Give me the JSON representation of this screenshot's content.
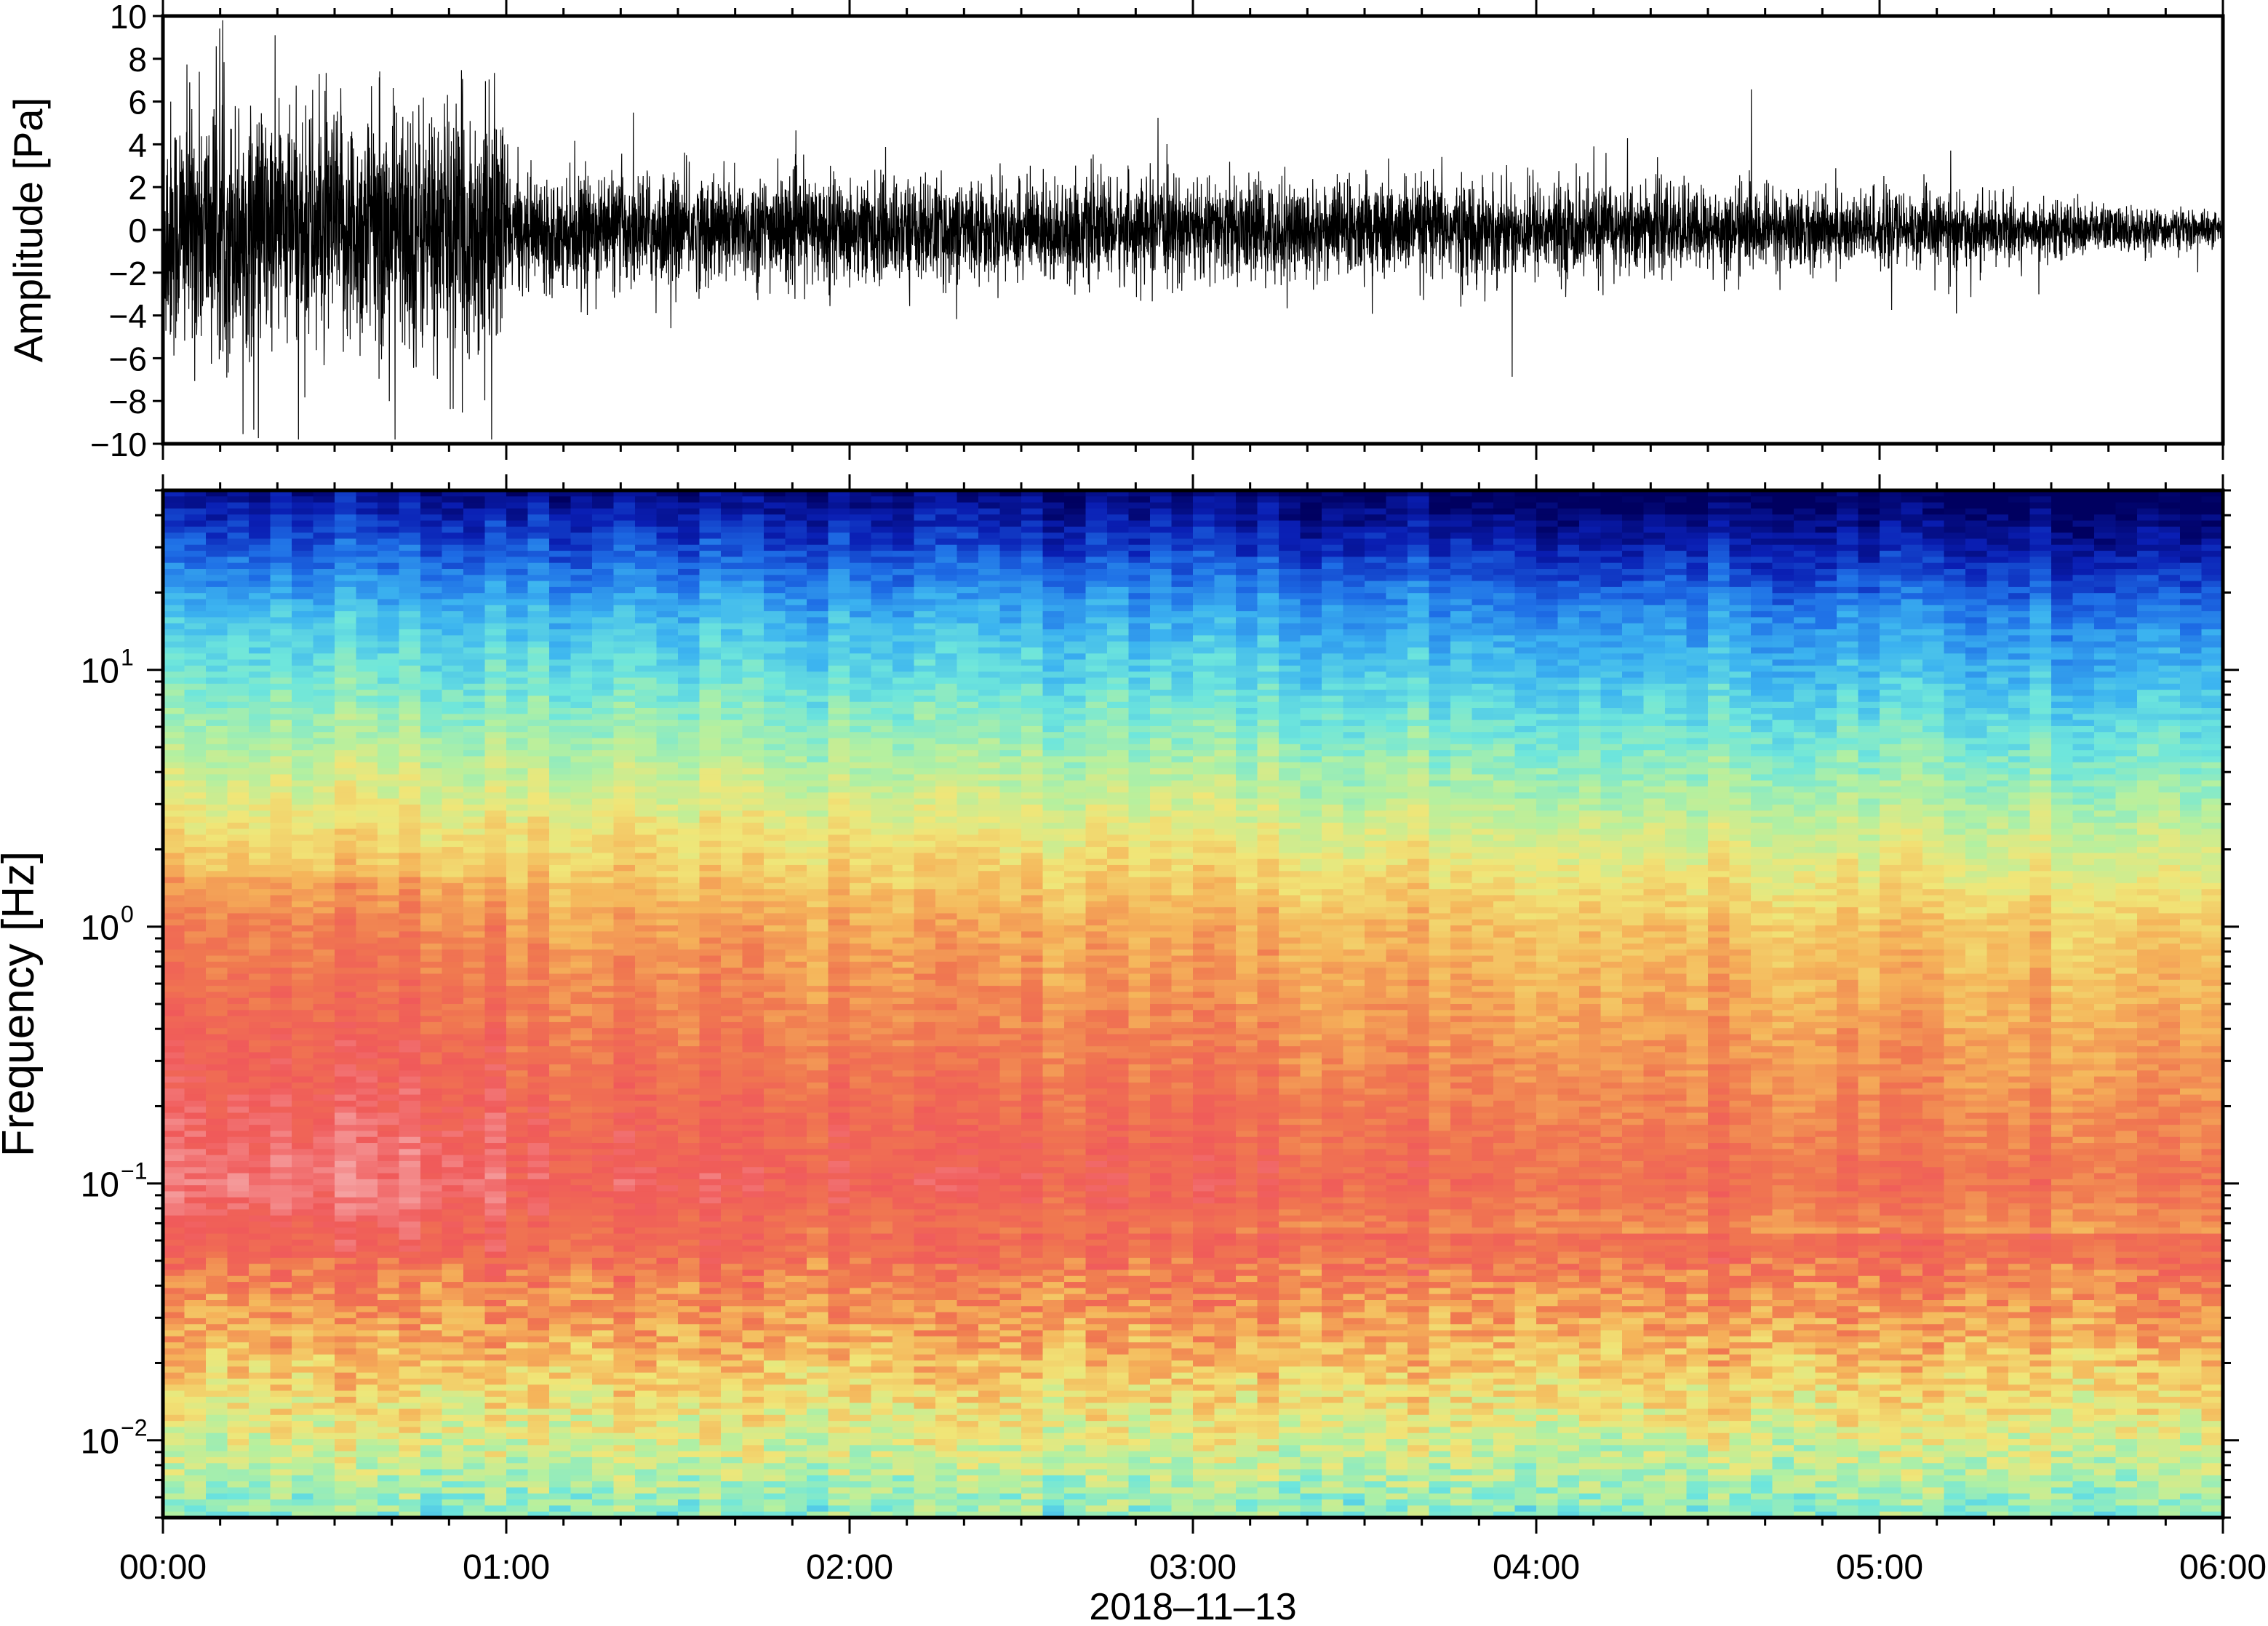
{
  "chart_data": [
    {
      "type": "line",
      "title": "",
      "ylabel": "Amplitude [Pa]",
      "xlabel": "",
      "ylim": [
        -10,
        10
      ],
      "yticks": [
        "10",
        "8",
        "6",
        "4",
        "2",
        "0",
        "−2",
        "−4",
        "−6",
        "−8",
        "−10"
      ],
      "ytick_values": [
        10,
        8,
        6,
        4,
        2,
        0,
        -2,
        -4,
        -6,
        -8,
        -10
      ],
      "series": [
        {
          "color": "#000000",
          "envelope_hours": [
            0,
            0.25,
            0.5,
            0.75,
            0.99,
            1.01,
            1.5,
            2,
            2.5,
            3,
            3.5,
            4,
            4.5,
            5,
            5.5,
            6
          ],
          "envelope_pa": [
            3.5,
            3.3,
            3.2,
            3.4,
            3.3,
            1.4,
            1.5,
            1.4,
            1.3,
            1.3,
            1.3,
            1.25,
            1.1,
            1.0,
            0.75,
            0.45
          ]
        }
      ]
    },
    {
      "type": "heatmap",
      "title": "",
      "ylabel": "Frequency [Hz]",
      "xlabel": "2018–11–13",
      "yscale": "log",
      "ylim": [
        0.005,
        50
      ],
      "yticks": [
        {
          "base": "10",
          "exp": "1",
          "value": 10
        },
        {
          "base": "10",
          "exp": "0",
          "value": 1
        },
        {
          "base": "10",
          "exp": "−1",
          "value": 0.1
        },
        {
          "base": "10",
          "exp": "−2",
          "value": 0.01
        }
      ],
      "xticks": [
        "00:00",
        "01:00",
        "02:00",
        "03:00",
        "04:00",
        "05:00",
        "06:00"
      ],
      "xlim_hours": [
        0,
        6
      ],
      "colormap": [
        "#000060",
        "#0a1fb4",
        "#1e6ee6",
        "#3cb4f0",
        "#6ee6dc",
        "#b4f0a0",
        "#f0e678",
        "#f5b45a",
        "#f07850",
        "#f05a5a",
        "#f5a0a0"
      ]
    }
  ]
}
